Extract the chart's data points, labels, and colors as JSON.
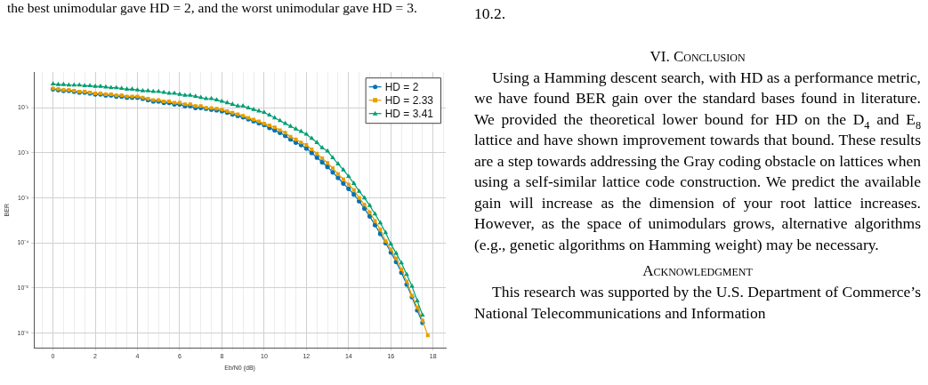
{
  "chart_data": {
    "type": "line",
    "xlabel": "Eb/N0 (dB)",
    "ylabel": "BER",
    "log": "y",
    "grid": true,
    "legend": "top right",
    "line_style": "solid",
    "xlim": [
      -0.9,
      18.6
    ],
    "ylim": [
      4.7e-07,
      0.62
    ],
    "xticks": [
      {
        "value": -0.5,
        "label": null
      },
      0,
      {
        "value": 0.5,
        "label": null
      },
      {
        "value": 1,
        "label": null
      },
      {
        "value": 1.5,
        "label": null
      },
      2,
      {
        "value": 2.5,
        "label": null
      },
      {
        "value": 3,
        "label": null
      },
      {
        "value": 3.5,
        "label": null
      },
      4,
      {
        "value": 4.5,
        "label": null
      },
      {
        "value": 5,
        "label": null
      },
      {
        "value": 5.5,
        "label": null
      },
      6,
      {
        "value": 6.5,
        "label": null
      },
      {
        "value": 7,
        "label": null
      },
      {
        "value": 7.5,
        "label": null
      },
      8,
      {
        "value": 8.5,
        "label": null
      },
      {
        "value": 9,
        "label": null
      },
      {
        "value": 9.5,
        "label": null
      },
      10,
      {
        "value": 10.5,
        "label": null
      },
      {
        "value": 11,
        "label": null
      },
      {
        "value": 11.5,
        "label": null
      },
      12,
      {
        "value": 12.5,
        "label": null
      },
      {
        "value": 13,
        "label": null
      },
      {
        "value": 13.5,
        "label": null
      },
      14,
      {
        "value": 14.5,
        "label": null
      },
      {
        "value": 15,
        "label": null
      },
      {
        "value": 15.5,
        "label": null
      },
      16,
      {
        "value": 16.5,
        "label": null
      },
      {
        "value": 17,
        "label": null
      },
      {
        "value": 17.5,
        "label": null
      },
      18,
      {
        "value": 18.5,
        "label": null
      }
    ],
    "yticks": [
      {
        "value": 1e-06,
        "label": "10⁻⁶"
      },
      {
        "value": 1e-05,
        "label": "10⁻⁵"
      },
      {
        "value": 0.0001,
        "label": "10⁻⁴"
      },
      {
        "value": 0.001,
        "label": "10⁻³"
      },
      {
        "value": 0.01,
        "label": "10⁻²"
      },
      {
        "value": 0.1,
        "label": "10⁻¹"
      }
    ],
    "x": [
      0,
      0.25,
      0.5,
      0.75,
      1,
      1.25,
      1.5,
      1.75,
      2,
      2.25,
      2.5,
      2.75,
      3,
      3.25,
      3.5,
      3.75,
      4,
      4.25,
      4.5,
      4.75,
      5,
      5.25,
      5.5,
      5.75,
      6,
      6.25,
      6.5,
      6.75,
      7,
      7.25,
      7.5,
      7.75,
      8,
      8.25,
      8.5,
      8.75,
      9,
      9.25,
      9.5,
      9.75,
      10,
      10.25,
      10.5,
      10.75,
      11,
      11.25,
      11.5,
      11.75,
      12,
      12.25,
      12.5,
      12.75,
      13,
      13.25,
      13.5,
      13.75,
      14,
      14.25,
      14.5,
      14.75,
      15,
      15.25,
      15.5,
      15.75,
      16,
      16.25,
      16.5,
      16.75,
      17,
      17.25,
      17.5,
      17.75
    ],
    "series": [
      {
        "name": "HD = 2",
        "color": "#0072b2",
        "marker": "circle",
        "values": [
          0.26,
          0.25,
          0.24,
          0.24,
          0.23,
          0.22,
          0.22,
          0.21,
          0.2,
          0.2,
          0.19,
          0.19,
          0.18,
          0.18,
          0.17,
          0.17,
          0.17,
          0.16,
          0.15,
          0.14,
          0.14,
          0.13,
          0.13,
          0.12,
          0.12,
          0.11,
          0.11,
          0.1,
          0.1,
          0.096,
          0.092,
          0.089,
          0.085,
          0.079,
          0.072,
          0.067,
          0.062,
          0.056,
          0.051,
          0.046,
          0.042,
          0.036,
          0.032,
          0.028,
          0.024,
          0.02,
          0.017,
          0.015,
          0.0126,
          0.01,
          0.0079,
          0.0062,
          0.0049,
          0.0037,
          0.0028,
          0.0021,
          0.0016,
          0.0012,
          0.00085,
          0.00058,
          0.00039,
          0.00025,
          0.00016,
          0.0001,
          6.2e-05,
          3.8e-05,
          2.2e-05,
          1.2e-05,
          6.3e-06,
          3.2e-06,
          1.7e-06,
          null
        ]
      },
      {
        "name": "HD = 2.33",
        "color": "#e69f00",
        "marker": "square",
        "values": [
          0.27,
          0.26,
          0.25,
          0.25,
          0.24,
          0.23,
          0.23,
          0.22,
          0.21,
          0.21,
          0.2,
          0.2,
          0.19,
          0.19,
          0.18,
          0.18,
          0.18,
          0.17,
          0.16,
          0.15,
          0.15,
          0.14,
          0.14,
          0.13,
          0.13,
          0.12,
          0.12,
          0.11,
          0.11,
          0.1,
          0.099,
          0.096,
          0.092,
          0.085,
          0.078,
          0.072,
          0.067,
          0.06,
          0.055,
          0.05,
          0.045,
          0.041,
          0.037,
          0.032,
          0.028,
          0.023,
          0.02,
          0.017,
          0.015,
          0.012,
          0.0097,
          0.0076,
          0.006,
          0.0046,
          0.0034,
          0.0026,
          0.002,
          0.0015,
          0.001,
          0.00071,
          0.00048,
          0.00031,
          0.0002,
          0.00011,
          7.2e-05,
          4.5e-05,
          2.6e-05,
          1.4e-05,
          6.8e-06,
          3.7e-06,
          1.9e-06,
          8.9e-07
        ]
      },
      {
        "name": "HD = 3.41",
        "color": "#009e73",
        "marker": "triangle",
        "values": [
          0.34,
          0.33,
          0.33,
          0.32,
          0.32,
          0.32,
          0.31,
          0.31,
          0.3,
          0.3,
          0.29,
          0.28,
          0.28,
          0.27,
          0.26,
          0.26,
          0.25,
          0.24,
          0.24,
          0.23,
          0.23,
          0.22,
          0.21,
          0.21,
          0.2,
          0.19,
          0.19,
          0.18,
          0.17,
          0.16,
          0.16,
          0.15,
          0.14,
          0.13,
          0.12,
          0.11,
          0.11,
          0.1,
          0.092,
          0.085,
          0.079,
          0.069,
          0.06,
          0.052,
          0.045,
          0.039,
          0.034,
          0.03,
          0.026,
          0.021,
          0.017,
          0.013,
          0.011,
          0.0078,
          0.0057,
          0.0042,
          0.003,
          0.0021,
          0.0014,
          0.001,
          0.00068,
          0.00044,
          0.00028,
          0.00017,
          9.5e-05,
          5.9e-05,
          3.6e-05,
          2e-05,
          1.1e-05,
          5.2e-06,
          2.5e-06,
          null
        ]
      }
    ],
    "annotations": [
      "the best unimodular gave HD = 2, and the worst unimodular gave HD = 3.",
      "10.2.",
      "VI. Conclusion",
      "Using a Hamming descent search, with HD as a performance metric, we have found BER gain over the standard bases found in literature. We provided the theoretical lower bound for HD on the D$_{4}$ and E$_{8}$ lattice and have shown improvement towards that bound. These results are a step towards addressing the Gray coding obstacle on lattices when using a self-similar lattice code construction. We predict the available gain will increase as the dimension of your root lattice increases. However, as the space of unimodulars grows, alternative algorithms (e.g., genetic algorithms on Hamming weight) may be necessary.",
      "Acknowledgment",
      "This research was supported by the U.S. Department of Commerce’s National Telecommunications and Information"
    ]
  }
}
